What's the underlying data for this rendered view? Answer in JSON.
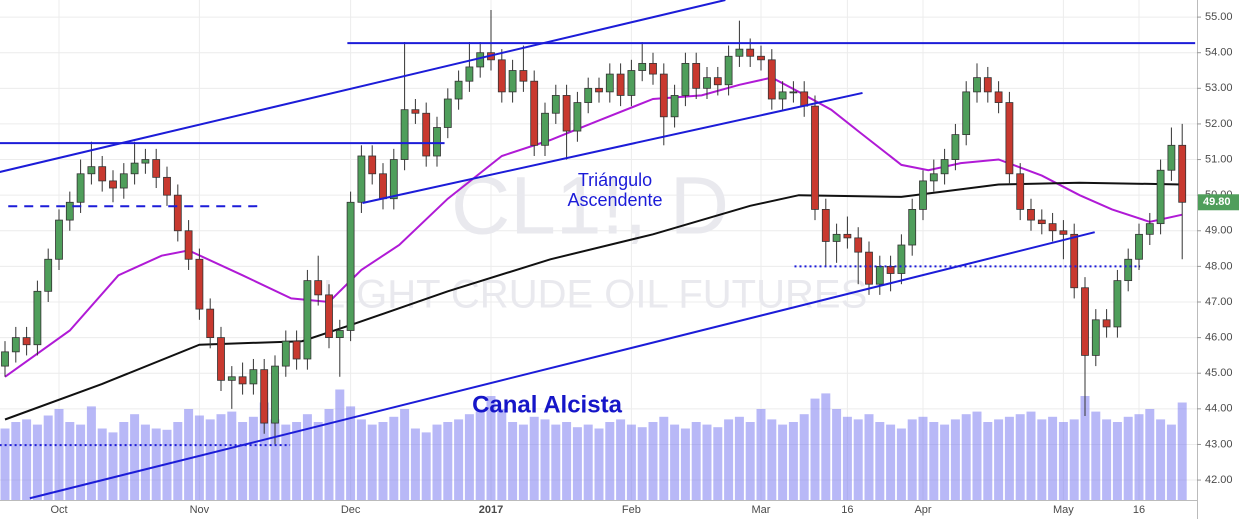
{
  "chart_data": {
    "type": "candlestick",
    "watermark": [
      "CL1!, D",
      "LIGHT CRUDE OIL FUTURES"
    ],
    "annotations": [
      "Triángulo",
      "Ascendente",
      "Canal Alcista"
    ],
    "categories": [
      null,
      null,
      null,
      null,
      null,
      "Oct",
      null,
      null,
      null,
      null,
      null,
      null,
      null,
      null,
      null,
      null,
      null,
      null,
      "Nov",
      null,
      null,
      null,
      null,
      null,
      null,
      null,
      null,
      null,
      null,
      null,
      null,
      null,
      "Dec",
      null,
      null,
      null,
      null,
      null,
      null,
      null,
      null,
      null,
      null,
      null,
      null,
      "2017",
      null,
      null,
      null,
      null,
      null,
      null,
      null,
      null,
      null,
      null,
      null,
      null,
      "Feb",
      null,
      null,
      null,
      null,
      null,
      null,
      null,
      null,
      null,
      null,
      null,
      "Mar",
      null,
      null,
      null,
      null,
      null,
      null,
      null,
      "16",
      null,
      null,
      null,
      null,
      null,
      null,
      "Apr",
      null,
      null,
      null,
      null,
      null,
      null,
      null,
      null,
      null,
      null,
      null,
      null,
      "May",
      null,
      null,
      null,
      null,
      null,
      null,
      "16",
      null,
      null,
      null,
      null
    ],
    "candles": {
      "up_color": "#4f9e5b",
      "down_color": "#c8392f",
      "open": [
        45.2,
        45.6,
        46.0,
        45.8,
        47.3,
        48.2,
        49.3,
        49.8,
        50.6,
        50.8,
        50.4,
        50.2,
        50.6,
        50.9,
        51.0,
        50.5,
        50.0,
        49.0,
        48.2,
        46.8,
        46.0,
        44.8,
        44.9,
        44.7,
        45.1,
        43.6,
        45.2,
        45.9,
        45.4,
        47.6,
        47.2,
        46.0,
        46.2,
        49.8,
        51.1,
        50.6,
        49.9,
        51.0,
        52.4,
        52.3,
        51.1,
        51.9,
        52.7,
        53.2,
        53.6,
        54.0,
        53.8,
        52.9,
        53.5,
        53.2,
        51.4,
        52.3,
        52.8,
        51.8,
        52.6,
        53.0,
        52.9,
        53.4,
        52.8,
        53.5,
        53.7,
        53.4,
        52.2,
        52.8,
        53.7,
        53.0,
        53.3,
        53.1,
        53.9,
        54.1,
        53.9,
        53.8,
        52.7,
        52.9,
        52.9,
        52.5,
        49.6,
        48.7,
        48.9,
        48.8,
        48.4,
        47.5,
        48.0,
        47.8,
        48.6,
        49.6,
        50.4,
        50.6,
        51.0,
        51.7,
        52.9,
        53.3,
        52.9,
        52.6,
        50.6,
        49.6,
        49.3,
        49.2,
        49.0,
        48.9,
        47.4,
        45.5,
        46.5,
        46.3,
        47.6,
        48.2,
        48.9,
        49.2,
        50.7,
        51.4
      ],
      "high": [
        45.9,
        46.3,
        46.3,
        47.6,
        48.5,
        49.6,
        50.1,
        51.0,
        51.5,
        51.1,
        50.7,
        50.9,
        51.5,
        51.3,
        51.3,
        50.8,
        50.3,
        49.3,
        48.5,
        47.1,
        46.3,
        45.2,
        45.3,
        45.4,
        45.4,
        45.5,
        46.2,
        46.2,
        47.9,
        48.3,
        47.5,
        46.5,
        50.1,
        51.4,
        51.4,
        50.9,
        51.3,
        54.3,
        52.7,
        52.6,
        52.2,
        53.0,
        53.5,
        54.3,
        54.3,
        55.2,
        54.1,
        53.8,
        54.2,
        53.5,
        52.6,
        53.1,
        53.1,
        52.9,
        53.3,
        53.3,
        53.7,
        53.7,
        53.8,
        54.3,
        54.0,
        53.7,
        53.1,
        54.0,
        54.0,
        53.6,
        53.6,
        54.2,
        54.9,
        54.4,
        54.2,
        54.1,
        53.2,
        53.2,
        53.2,
        52.8,
        49.9,
        49.2,
        49.4,
        49.1,
        48.7,
        48.3,
        48.3,
        48.9,
        49.9,
        50.7,
        51.0,
        51.3,
        52.0,
        53.2,
        53.7,
        53.6,
        53.2,
        52.9,
        50.9,
        49.9,
        49.6,
        49.5,
        49.3,
        49.2,
        47.7,
        46.8,
        46.8,
        47.9,
        48.5,
        49.2,
        49.5,
        51.0,
        51.9,
        52.0
      ],
      "low": [
        44.9,
        45.3,
        45.5,
        45.5,
        47.0,
        47.9,
        49.0,
        49.5,
        50.3,
        50.1,
        49.8,
        49.9,
        50.3,
        50.6,
        50.2,
        49.7,
        48.7,
        47.9,
        46.5,
        45.7,
        44.5,
        44.0,
        44.4,
        44.4,
        43.3,
        43.0,
        44.9,
        45.1,
        45.1,
        46.9,
        45.7,
        44.9,
        45.9,
        49.5,
        50.3,
        49.6,
        49.6,
        50.7,
        52.0,
        50.8,
        50.8,
        51.6,
        52.4,
        52.9,
        53.3,
        53.5,
        52.6,
        52.6,
        52.9,
        51.1,
        51.1,
        52.0,
        51.0,
        51.5,
        52.3,
        52.6,
        52.6,
        52.5,
        52.5,
        53.2,
        53.1,
        51.4,
        51.9,
        52.5,
        52.7,
        52.7,
        52.8,
        52.8,
        53.6,
        53.6,
        53.5,
        52.4,
        52.4,
        52.6,
        52.2,
        49.3,
        48.0,
        48.1,
        48.5,
        47.5,
        47.2,
        47.2,
        47.3,
        47.5,
        48.3,
        49.3,
        50.1,
        50.3,
        50.7,
        51.4,
        52.6,
        52.6,
        52.3,
        50.3,
        49.3,
        49.0,
        48.9,
        48.7,
        48.2,
        47.1,
        43.8,
        45.2,
        46.0,
        46.0,
        47.3,
        47.9,
        48.6,
        48.9,
        50.4,
        48.2
      ],
      "close": [
        45.6,
        46.0,
        45.8,
        47.3,
        48.2,
        49.3,
        49.8,
        50.6,
        50.8,
        50.4,
        50.2,
        50.6,
        50.9,
        51.0,
        50.5,
        50.0,
        49.0,
        48.2,
        46.8,
        46.0,
        44.8,
        44.9,
        44.7,
        45.1,
        43.6,
        45.2,
        45.9,
        45.4,
        47.6,
        47.2,
        46.0,
        46.2,
        49.8,
        51.1,
        50.6,
        49.9,
        51.0,
        52.4,
        52.3,
        51.1,
        51.9,
        52.7,
        53.2,
        53.6,
        54.0,
        53.8,
        52.9,
        53.5,
        53.2,
        51.4,
        52.3,
        52.8,
        51.8,
        52.6,
        53.0,
        52.9,
        53.4,
        52.8,
        53.5,
        53.7,
        53.4,
        52.2,
        52.8,
        53.7,
        53.0,
        53.3,
        53.1,
        53.9,
        54.1,
        53.9,
        53.8,
        52.7,
        52.9,
        52.9,
        52.5,
        49.6,
        48.7,
        48.9,
        48.8,
        48.4,
        47.5,
        48.0,
        47.8,
        48.6,
        49.6,
        50.4,
        50.6,
        51.0,
        51.7,
        52.9,
        53.3,
        52.9,
        52.6,
        50.6,
        49.6,
        49.3,
        49.2,
        49.0,
        48.9,
        47.4,
        45.5,
        46.5,
        46.3,
        47.6,
        48.2,
        48.9,
        49.2,
        50.7,
        51.4,
        49.8
      ]
    },
    "volume": {
      "color": "#7d7df0",
      "max": 100,
      "values": [
        55,
        60,
        62,
        58,
        65,
        70,
        60,
        58,
        72,
        55,
        52,
        60,
        66,
        58,
        55,
        54,
        60,
        70,
        65,
        62,
        66,
        68,
        60,
        64,
        75,
        62,
        58,
        60,
        66,
        60,
        70,
        85,
        72,
        62,
        58,
        60,
        64,
        70,
        55,
        52,
        58,
        60,
        62,
        66,
        68,
        80,
        70,
        60,
        58,
        64,
        62,
        58,
        60,
        56,
        58,
        55,
        60,
        62,
        58,
        56,
        60,
        64,
        58,
        55,
        60,
        58,
        56,
        62,
        64,
        60,
        70,
        62,
        58,
        60,
        66,
        78,
        82,
        70,
        64,
        62,
        66,
        60,
        58,
        55,
        62,
        64,
        60,
        58,
        62,
        66,
        68,
        60,
        62,
        64,
        66,
        68,
        62,
        64,
        60,
        62,
        80,
        68,
        62,
        60,
        64,
        66,
        70,
        62,
        58,
        75
      ]
    },
    "series": [
      {
        "color": "#b01ad6",
        "x": [
          0,
          6,
          10.5,
          14.5,
          17,
          22,
          26.5,
          30,
          33,
          36.5,
          41,
          46,
          50.5,
          55,
          60,
          64.5,
          68,
          71,
          73.5,
          76.5,
          79,
          83,
          85.5,
          88.5,
          92,
          96,
          99.5,
          102.5,
          106,
          109
        ],
        "values": [
          44.9,
          46.2,
          47.75,
          48.3,
          48.45,
          47.75,
          47.1,
          47.0,
          47.9,
          48.6,
          49.9,
          51.1,
          51.55,
          52.1,
          52.7,
          52.8,
          53.1,
          53.3,
          52.9,
          52.4,
          51.8,
          50.85,
          50.7,
          50.9,
          51.0,
          50.55,
          50.0,
          49.6,
          49.25,
          49.45
        ]
      },
      {
        "color": "#111111",
        "x": [
          0,
          9,
          18,
          27.5,
          32,
          41,
          50.5,
          60,
          69,
          73.5,
          83,
          92,
          99.5,
          109
        ],
        "values": [
          43.7,
          44.7,
          45.8,
          45.9,
          46.35,
          47.3,
          48.2,
          48.9,
          49.7,
          50.0,
          49.95,
          50.3,
          50.35,
          50.3
        ]
      }
    ],
    "lines": [
      {
        "x": [
          -0.5,
          66.7
        ],
        "y": [
          50.65,
          55.48
        ],
        "color": "#1c1cd8",
        "style": "solid"
      },
      {
        "x": [
          2.3,
          100.9
        ],
        "y": [
          41.49,
          48.96
        ],
        "color": "#1c1cd8",
        "style": "solid"
      },
      {
        "x": [
          31.7,
          110.2
        ],
        "y": [
          54.27,
          54.27
        ],
        "color": "#1c1cd8",
        "style": "solid"
      },
      {
        "x": [
          -0.5,
          40.7
        ],
        "y": [
          51.46,
          51.46
        ],
        "color": "#1c1cd8",
        "style": "solid"
      },
      {
        "x": [
          0.3,
          23.8
        ],
        "y": [
          49.69,
          49.69
        ],
        "color": "#1c1cd8",
        "style": "dashed"
      },
      {
        "x": [
          33.1,
          79.4
        ],
        "y": [
          49.78,
          52.87
        ],
        "color": "#1c1cd8",
        "style": "solid"
      },
      {
        "x": [
          73.1,
          105.1
        ],
        "y": [
          48.0,
          48.0
        ],
        "color": "#1c1cd8",
        "style": "dotted"
      },
      {
        "x": [
          -0.5,
          26.4
        ],
        "y": [
          42.98,
          42.98
        ],
        "color": "#1c1cd8",
        "style": "dotted"
      }
    ],
    "last_price": {
      "value": 49.8,
      "label": "49.80"
    },
    "ylim": [
      41.44,
      55.48
    ],
    "yticks": [
      {
        "value": 42,
        "label": "42.00"
      },
      {
        "value": 43,
        "label": "43.00"
      },
      {
        "value": 44,
        "label": "44.00"
      },
      {
        "value": 45,
        "label": "45.00"
      },
      {
        "value": 46,
        "label": "46.00"
      },
      {
        "value": 47,
        "label": "47.00"
      },
      {
        "value": 48,
        "label": "48.00"
      },
      {
        "value": 49,
        "label": "49.00"
      },
      {
        "value": 50,
        "label": "50.00"
      },
      {
        "value": 51,
        "label": "51.00"
      },
      {
        "value": 52,
        "label": "52.00"
      },
      {
        "value": 53,
        "label": "53.00"
      },
      {
        "value": 54,
        "label": "54.00"
      },
      {
        "value": 55,
        "label": "55.00"
      }
    ],
    "grid": true
  }
}
